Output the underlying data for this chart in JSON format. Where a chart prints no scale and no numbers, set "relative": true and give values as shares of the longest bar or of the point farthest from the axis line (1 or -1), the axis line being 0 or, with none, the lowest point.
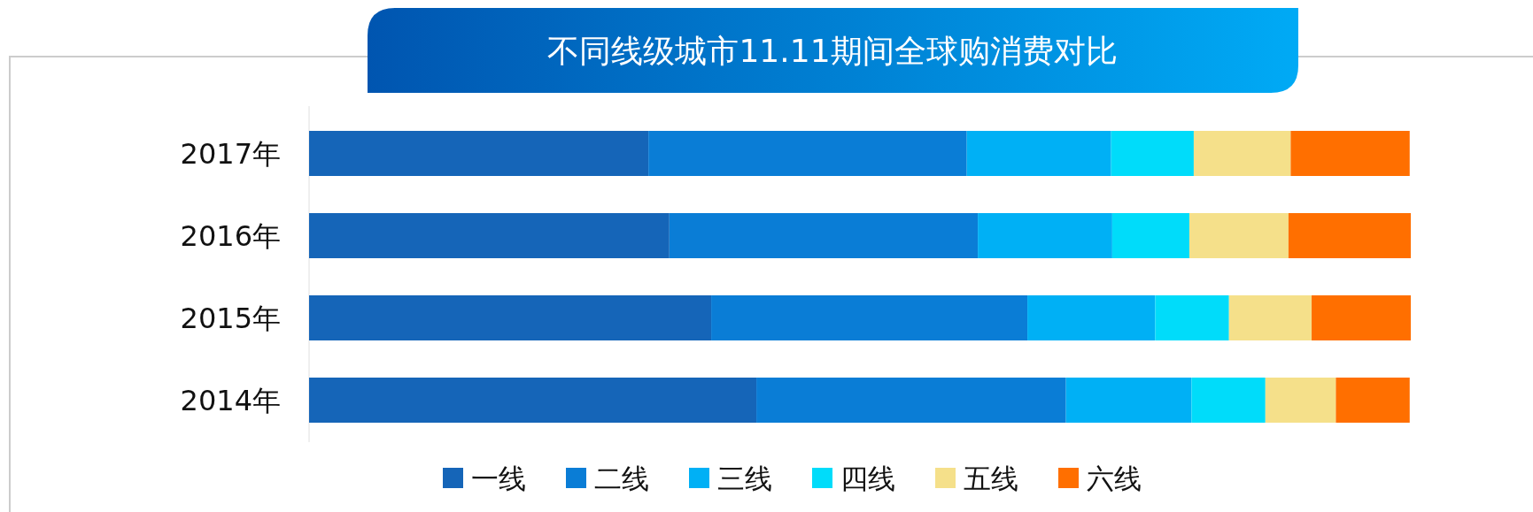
{
  "chart_data": {
    "type": "bar",
    "title": "不同线级城市11.11期间全球购消费对比",
    "orientation": "horizontal",
    "stacked": true,
    "relative": true,
    "legend": "bottom",
    "grid": false,
    "categories": [
      "2017年",
      "2016年",
      "2015年",
      "2014年"
    ],
    "series": [
      {
        "name": "一线",
        "color": "#1565b8",
        "values": [
          0.308,
          0.327,
          0.365,
          0.406
        ]
      },
      {
        "name": "二线",
        "color": "#0a7dd6",
        "values": [
          0.289,
          0.28,
          0.287,
          0.281
        ]
      },
      {
        "name": "三线",
        "color": "#00b0f5",
        "values": [
          0.131,
          0.122,
          0.116,
          0.114
        ]
      },
      {
        "name": "四线",
        "color": "#00dcfa",
        "values": [
          0.075,
          0.07,
          0.067,
          0.067
        ]
      },
      {
        "name": "五线",
        "color": "#f5e08a",
        "values": [
          0.088,
          0.09,
          0.075,
          0.064
        ]
      },
      {
        "name": "六线",
        "color": "#ff6f00",
        "values": [
          0.108,
          0.111,
          0.09,
          0.067
        ]
      }
    ]
  }
}
